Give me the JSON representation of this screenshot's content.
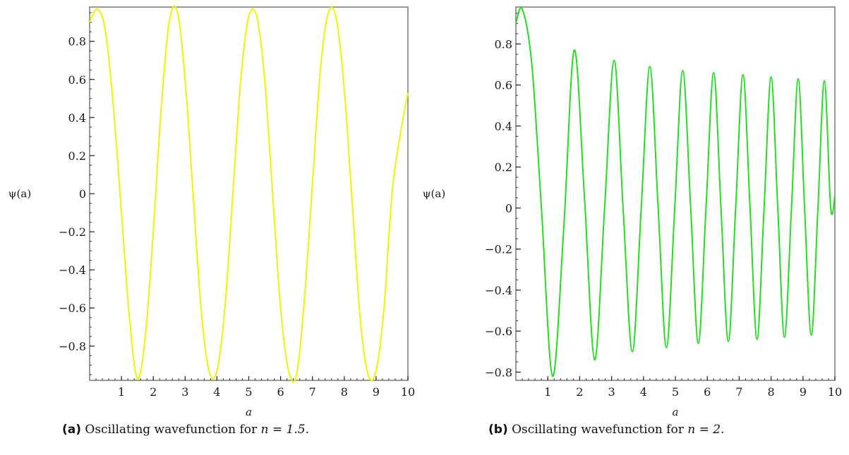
{
  "chart_data": [
    {
      "type": "line",
      "xlabel": "a",
      "ylabel": "ψ(a)",
      "xlim": [
        0,
        10
      ],
      "ylim": [
        -0.98,
        0.98
      ],
      "xticks": [
        1,
        2,
        3,
        4,
        5,
        6,
        7,
        8,
        9,
        10
      ],
      "yticks": [
        -0.8,
        -0.6,
        -0.4,
        -0.2,
        0,
        0.2,
        0.4,
        0.6,
        0.8
      ],
      "xtick_labels": [
        "1",
        "2",
        "3",
        "4",
        "5",
        "6",
        "7",
        "8",
        "9",
        "10"
      ],
      "ytick_labels": [
        "−0.8",
        "−0.6",
        "−0.4",
        "−0.2",
        "0",
        "0.2",
        "0.4",
        "0.6",
        "0.8"
      ],
      "series": [
        {
          "color": "#f2f200",
          "x": [
            0.0,
            0.25,
            0.5,
            0.75,
            1.0,
            1.25,
            1.5,
            1.75,
            2.0,
            2.25,
            2.5,
            2.75,
            3.0,
            3.25,
            3.5,
            3.75,
            4.0,
            4.25,
            4.5,
            4.75,
            5.0,
            5.25,
            5.5,
            5.75,
            6.0,
            6.25,
            6.5,
            6.75,
            7.0,
            7.25,
            7.5,
            7.75,
            8.0,
            8.25,
            8.5,
            8.75,
            9.0,
            9.25,
            9.5,
            9.75,
            10.0
          ],
          "values": [
            0.9,
            0.97,
            0.85,
            0.45,
            -0.1,
            -0.65,
            -0.97,
            -0.75,
            -0.2,
            0.45,
            0.9,
            0.96,
            0.6,
            0.0,
            -0.6,
            -0.93,
            -0.93,
            -0.6,
            0.0,
            0.6,
            0.93,
            0.93,
            0.6,
            0.0,
            -0.6,
            -0.93,
            -0.95,
            -0.55,
            0.05,
            0.65,
            0.95,
            0.92,
            0.55,
            -0.05,
            -0.65,
            -0.95,
            -0.93,
            -0.6,
            0.0,
            0.3,
            0.53
          ]
        }
      ],
      "caption": {
        "tag": "(a)",
        "text": "Oscillating wavefunction for",
        "math": "n = 1.5."
      }
    },
    {
      "type": "line",
      "xlabel": "a",
      "ylabel": "ψ(a)",
      "xlim": [
        0,
        10
      ],
      "ylim": [
        -0.84,
        0.98
      ],
      "xticks": [
        1,
        2,
        3,
        4,
        5,
        6,
        7,
        8,
        9,
        10
      ],
      "yticks": [
        -0.8,
        -0.6,
        -0.4,
        -0.2,
        0,
        0.2,
        0.4,
        0.6,
        0.8
      ],
      "xtick_labels": [
        "1",
        "2",
        "3",
        "4",
        "5",
        "6",
        "7",
        "8",
        "9",
        "10"
      ],
      "ytick_labels": [
        "−0.8",
        "−0.6",
        "−0.4",
        "−0.2",
        "0",
        "0.2",
        "0.4",
        "0.6",
        "0.8"
      ],
      "series": [
        {
          "color": "#22dd22",
          "x": [
            0.0,
            0.2,
            0.5,
            0.8,
            1.15,
            1.5,
            1.83,
            2.15,
            2.47,
            2.78,
            3.08,
            3.36,
            3.65,
            3.93,
            4.2,
            4.46,
            4.72,
            4.98,
            5.23,
            5.48,
            5.72,
            5.96,
            6.2,
            6.43,
            6.66,
            6.89,
            7.12,
            7.34,
            7.56,
            7.78,
            8.0,
            8.21,
            8.42,
            8.64,
            8.85,
            9.05,
            9.26,
            9.47,
            9.67,
            9.87,
            10.0
          ],
          "values": [
            0.9,
            0.97,
            0.7,
            0.0,
            -0.82,
            -0.1,
            0.77,
            0.05,
            -0.74,
            0.0,
            0.72,
            0.0,
            -0.7,
            0.0,
            0.69,
            0.0,
            -0.68,
            0.0,
            0.67,
            0.0,
            -0.66,
            0.0,
            0.66,
            0.0,
            -0.65,
            0.0,
            0.65,
            0.0,
            -0.64,
            0.0,
            0.64,
            0.0,
            -0.63,
            0.0,
            0.63,
            0.0,
            -0.62,
            0.0,
            0.62,
            0.0,
            0.06
          ]
        }
      ],
      "caption": {
        "tag": "(b)",
        "text": "Oscillating wavefunction for",
        "math": "n = 2."
      }
    }
  ]
}
